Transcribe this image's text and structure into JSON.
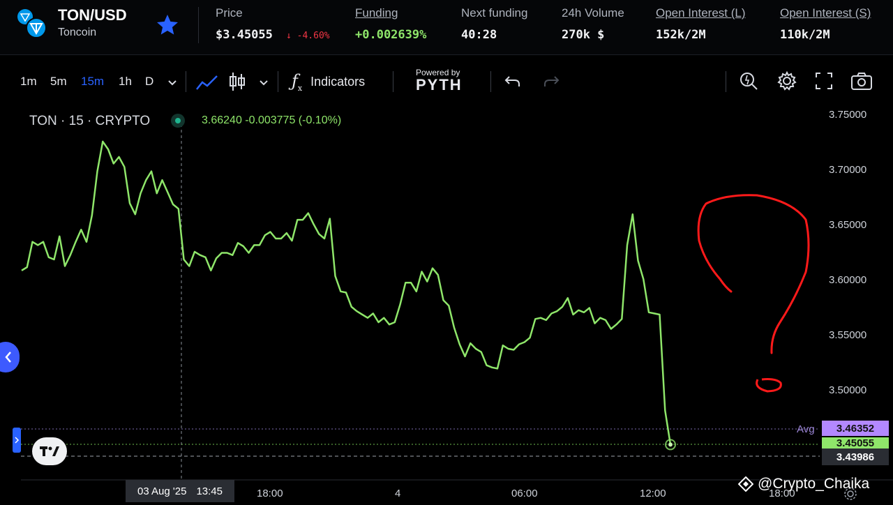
{
  "header": {
    "symbol": "TON/USD",
    "name": "Toncoin",
    "price_label": "Price",
    "price_value": "$3.45055",
    "price_change": "↓ -4.60%",
    "funding_label": "Funding",
    "funding_value": "+0.002639%",
    "next_funding_label": "Next funding",
    "next_funding_value": "40:28",
    "volume_label": "24h Volume",
    "volume_value": "270k $",
    "oi_long_label": "Open Interest (L)",
    "oi_long_value": "152k/2M",
    "oi_short_label": "Open Interest (S)",
    "oi_short_value": "110k/2M"
  },
  "toolbar": {
    "intervals": [
      "1m",
      "5m",
      "15m",
      "1h",
      "D"
    ],
    "active_interval": "15m",
    "indicators_label": "Indicators",
    "powered_by": "Powered by",
    "provider": "PYTH"
  },
  "legend": {
    "series_title": "TON · 15 · CRYPTO",
    "ohlc_text": "3.66240 -0.003775 (-0.10%)"
  },
  "price_axis": {
    "ticks": [
      "3.75000",
      "3.70000",
      "3.65000",
      "3.60000",
      "3.55000",
      "3.50000"
    ],
    "avg_label": "Avg",
    "avg_value": "3.46352",
    "last_value": "3.45055",
    "crosshair_value": "3.43986"
  },
  "time_axis": {
    "crosshair_date": "03 Aug '25",
    "crosshair_time": "13:45",
    "ticks": [
      "18:00",
      "4",
      "06:00",
      "12:00",
      "18:00"
    ]
  },
  "watermark": "@Crypto_Chaika",
  "colors": {
    "line": "#8fe66a",
    "accent_blue": "#2962ff",
    "avg_tag": "#b388ff",
    "annotation": "#ff1a1a"
  },
  "chart_data": {
    "type": "line",
    "title": "TON · 15 · CRYPTO",
    "ylim": [
      3.42,
      3.76
    ],
    "series": [
      {
        "values": [
          3.609,
          3.612,
          3.635,
          3.632,
          3.635,
          3.621,
          3.619,
          3.64,
          3.613,
          3.623,
          3.635,
          3.646,
          3.635,
          3.659,
          3.699,
          3.726,
          3.719,
          3.706,
          3.712,
          3.703,
          3.67,
          3.66,
          3.679,
          3.691,
          3.699,
          3.679,
          3.691,
          3.68,
          3.669,
          3.665,
          3.619,
          3.613,
          3.626,
          3.623,
          3.621,
          3.609,
          3.62,
          3.625,
          3.625,
          3.623,
          3.634,
          3.631,
          3.625,
          3.632,
          3.632,
          3.641,
          3.644,
          3.638,
          3.638,
          3.643,
          3.636,
          3.655,
          3.655,
          3.661,
          3.651,
          3.642,
          3.638,
          3.656,
          3.604,
          3.59,
          3.589,
          3.576,
          3.572,
          3.569,
          3.566,
          3.57,
          3.562,
          3.566,
          3.56,
          3.562,
          3.578,
          3.598,
          3.598,
          3.59,
          3.608,
          3.599,
          3.611,
          3.605,
          3.582,
          3.577,
          3.557,
          3.542,
          3.531,
          3.543,
          3.538,
          3.535,
          3.523,
          3.521,
          3.52,
          3.541,
          3.538,
          3.537,
          3.542,
          3.544,
          3.548,
          3.565,
          3.566,
          3.564,
          3.57,
          3.572,
          3.576,
          3.584,
          3.569,
          3.573,
          3.571,
          3.575,
          3.561,
          3.566,
          3.564,
          3.556,
          3.56,
          3.565,
          3.632,
          3.66,
          3.618,
          3.601,
          3.571,
          3.57,
          3.569,
          3.482,
          3.451
        ]
      }
    ]
  }
}
